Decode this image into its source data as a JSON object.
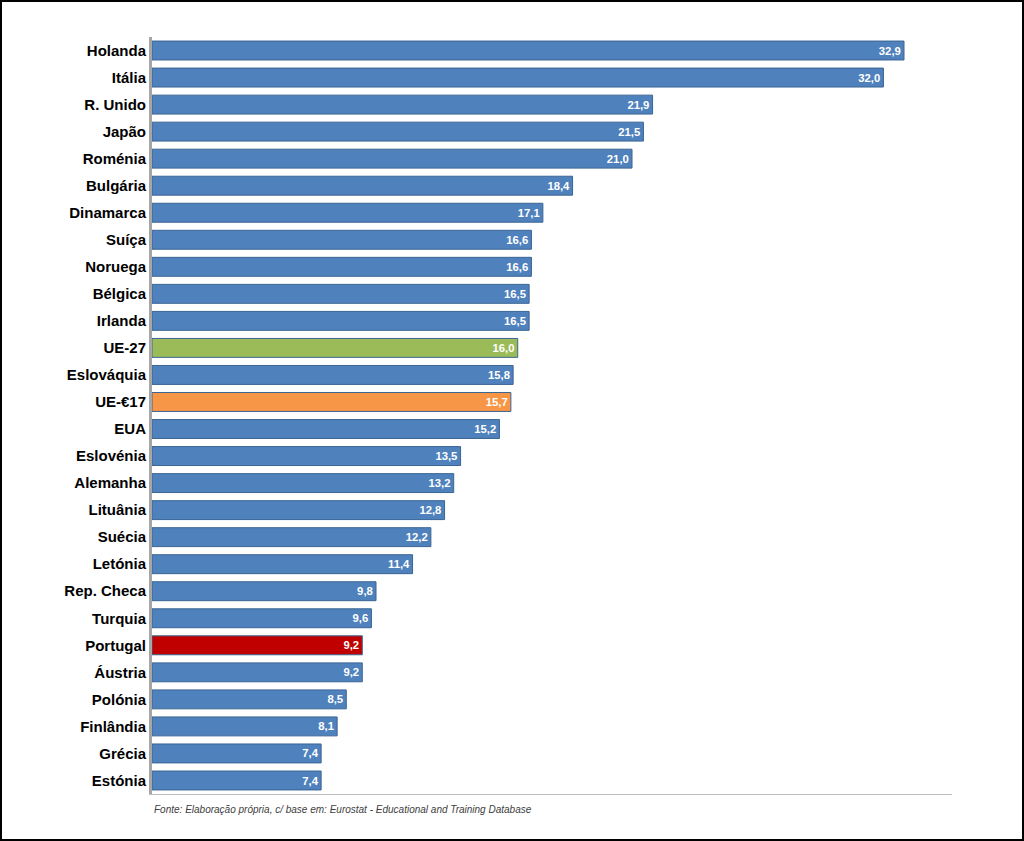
{
  "chart_data": {
    "type": "bar",
    "orientation": "horizontal",
    "categories": [
      "Holanda",
      "Itália",
      "R. Unido",
      "Japão",
      "Roménia",
      "Bulgária",
      "Dinamarca",
      "Suíça",
      "Noruega",
      "Bélgica",
      "Irlanda",
      "UE-27",
      "Eslováquia",
      "UE-€17",
      "EUA",
      "Eslovénia",
      "Alemanha",
      "Lituânia",
      "Suécia",
      "Letónia",
      "Rep. Checa",
      "Turquia",
      "Portugal",
      "Áustria",
      "Polónia",
      "Finlândia",
      "Grécia",
      "Estónia"
    ],
    "values": [
      32.9,
      32.0,
      21.9,
      21.5,
      21.0,
      18.4,
      17.1,
      16.6,
      16.6,
      16.5,
      16.5,
      16.0,
      15.8,
      15.7,
      15.2,
      13.5,
      13.2,
      12.8,
      12.2,
      11.4,
      9.8,
      9.6,
      9.2,
      9.2,
      8.5,
      8.1,
      7.4,
      7.4
    ],
    "value_labels": [
      "32,9",
      "32,0",
      "21,9",
      "21,5",
      "21,0",
      "18,4",
      "17,1",
      "16,6",
      "16,6",
      "16,5",
      "16,5",
      "16,0",
      "15,8",
      "15,7",
      "15,2",
      "13,5",
      "13,2",
      "12,8",
      "12,2",
      "11,4",
      "9,8",
      "9,6",
      "9,2",
      "9,2",
      "8,5",
      "8,1",
      "7,4",
      "7,4"
    ],
    "colors": [
      "#4f81bd",
      "#4f81bd",
      "#4f81bd",
      "#4f81bd",
      "#4f81bd",
      "#4f81bd",
      "#4f81bd",
      "#4f81bd",
      "#4f81bd",
      "#4f81bd",
      "#4f81bd",
      "#9bbb59",
      "#4f81bd",
      "#f79646",
      "#4f81bd",
      "#4f81bd",
      "#4f81bd",
      "#4f81bd",
      "#4f81bd",
      "#4f81bd",
      "#4f81bd",
      "#4f81bd",
      "#c00000",
      "#4f81bd",
      "#4f81bd",
      "#4f81bd",
      "#4f81bd",
      "#4f81bd"
    ],
    "xlim": [
      0,
      35
    ],
    "tick_labels": "y",
    "data_labels": true,
    "grid": false,
    "annotations": [
      "Fonte: Elaboração própria, c/ base em: Eurostat - Educational and Training Database"
    ]
  }
}
